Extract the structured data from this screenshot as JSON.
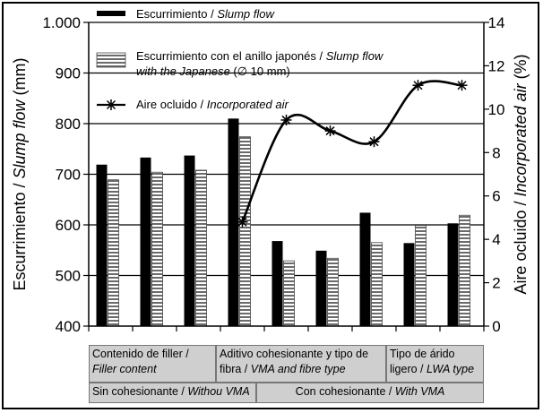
{
  "chart_data": {
    "type": "bar",
    "categories": [
      "",
      "",
      "",
      "",
      "",
      "",
      "",
      "",
      ""
    ],
    "left_axis": {
      "label_plain": "Escurrimiento / ",
      "label_italic": "Slump flow",
      "label_unit": " (mm)",
      "ylim": [
        400,
        1000
      ],
      "ticks": [
        "400",
        "500",
        "600",
        "700",
        "800",
        "900",
        "1.000"
      ]
    },
    "right_axis": {
      "label_plain": "Aire ocluido / ",
      "label_italic": "Incorporated air",
      "label_unit": " (%)",
      "ylim": [
        0,
        14
      ],
      "ticks": [
        "0",
        "2",
        "4",
        "6",
        "8",
        "10",
        "12",
        "14"
      ]
    },
    "grid_y": true,
    "legend_position": "top-left",
    "series": [
      {
        "name": "Escurrimiento / Slump flow",
        "name_plain": "Escurrimiento / ",
        "name_italic": "Slump flow",
        "axis": "left",
        "kind": "bar",
        "color": "#000000",
        "values": [
          719,
          733,
          737,
          810,
          568,
          549,
          624,
          564,
          603
        ]
      },
      {
        "name": "Escurrimiento con el anillo japonés / Slump flow with the Japanese (∅ 10 mm)",
        "name_plain": "Escurrimiento con el anillo japonés / ",
        "name_italic": "Slump flow",
        "name_italic2": "with the Japanese",
        "name_tail": " (∅ 10 mm)",
        "axis": "left",
        "kind": "bar",
        "pattern": "horizontal-stripes",
        "values": [
          689,
          704,
          708,
          774,
          529,
          534,
          565,
          599,
          619
        ]
      },
      {
        "name": "Aire ocluido / Incorporated air",
        "name_plain": "Aire ocluido / ",
        "name_italic": "Incorporated air",
        "axis": "right",
        "kind": "line",
        "marker": "asterisk",
        "color": "#000000",
        "points": [
          [
            4,
            4.8
          ],
          [
            5,
            9.5
          ],
          [
            6,
            9.0
          ],
          [
            7,
            8.5
          ],
          [
            8,
            11.1
          ],
          [
            9,
            11.1
          ]
        ]
      }
    ],
    "groups": {
      "row1": [
        {
          "plain": "Contenido de filler /",
          "italic": "Filler content",
          "from": 1,
          "to": 3
        },
        {
          "plain": "Aditivo cohesionante y tipo de fibra / ",
          "italic": "VMA and fibre type",
          "from": 4,
          "to": 7
        },
        {
          "plain": "Tipo de árido ligero / ",
          "italic": "LWA type",
          "from": 8,
          "to": 9
        }
      ],
      "row2": [
        {
          "plain": "Sin cohesionante / ",
          "italic": "Withou VMA",
          "from": 1,
          "to": 3
        },
        {
          "plain": "Con cohesionante / ",
          "italic": "With VMA",
          "from": 4,
          "to": 9
        }
      ]
    }
  }
}
